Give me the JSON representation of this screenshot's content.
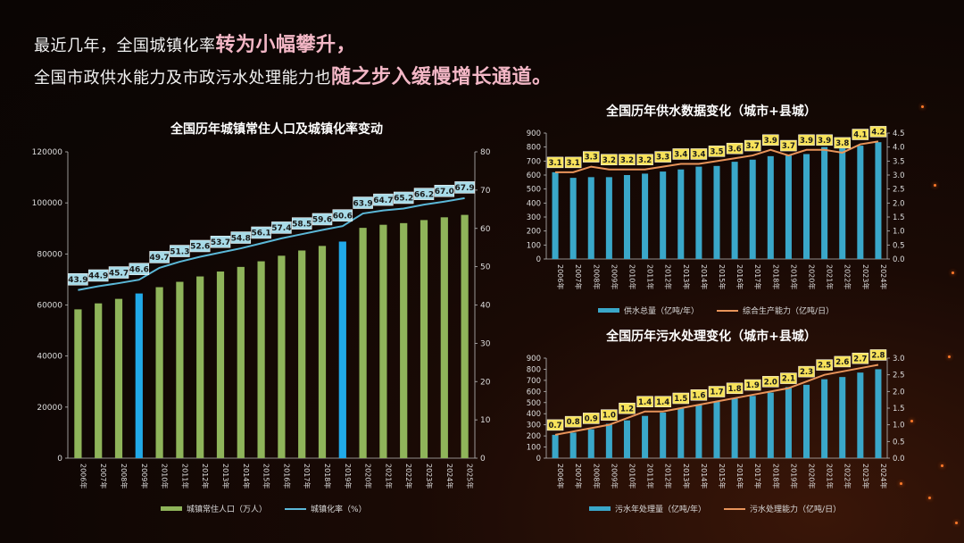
{
  "headline": {
    "line1_plain": "最近几年，全国城镇化率",
    "line1_em": "转为小幅攀升，",
    "line2_plain": "全国市政供水能力及市政污水处理能力也",
    "line2_em": "随之步入缓慢增长通道。"
  },
  "colors": {
    "population_bar": "#8fb45a",
    "highlight_bar": "#21a9e8",
    "urban_line": "#5bb8d8",
    "supply_bar": "#3aa7c9",
    "capacity_line": "#e8945a",
    "label_bg_blue": "#a8dbe8",
    "label_bg_yellow": "#f7e25a"
  },
  "chart_data": [
    {
      "id": "population",
      "type": "bar",
      "title": "全国历年城镇常住人口及城镇化率变动",
      "categories": [
        "2006年",
        "2007年",
        "2008年",
        "2009年",
        "2010年",
        "2011年",
        "2012年",
        "2013年",
        "2014年",
        "2015年",
        "2016年",
        "2017年",
        "2018年",
        "2019年",
        "2020年",
        "2021年",
        "2022年",
        "2023年",
        "2024年",
        "2025年"
      ],
      "series": [
        {
          "name": "城镇常住人口（万人）",
          "axis": "left",
          "type": "bar",
          "values": [
            58288,
            60633,
            62403,
            64512,
            66978,
            69079,
            71182,
            73111,
            74916,
            77116,
            79298,
            81347,
            83137,
            84843,
            90220,
            91425,
            92071,
            93267,
            94350,
            95300
          ],
          "highlight_indices": [
            3,
            13
          ]
        },
        {
          "name": "城镇化率（%）",
          "axis": "right",
          "type": "line",
          "values": [
            43.9,
            44.9,
            45.7,
            46.6,
            49.7,
            51.3,
            52.6,
            53.7,
            54.8,
            56.1,
            57.4,
            58.5,
            59.6,
            60.6,
            63.9,
            64.7,
            65.2,
            66.2,
            67.0,
            67.9
          ]
        }
      ],
      "data_labels": [
        "43.9",
        "44.9",
        "45.7",
        "46.6",
        "49.7",
        "51.3",
        "52.6",
        "53.7",
        "54.8",
        "56.1",
        "57.4",
        "58.5",
        "59.6",
        "60.6",
        "63.9",
        "64.7",
        "65.2",
        "66.2",
        "67.0",
        "67.9"
      ],
      "y_left": {
        "min": 0,
        "max": 120000,
        "ticks": [
          "0",
          "20000",
          "40000",
          "60000",
          "80000",
          "100000",
          "120000"
        ]
      },
      "y_right": {
        "min": 0,
        "max": 80,
        "ticks": [
          "0",
          "10",
          "20",
          "30",
          "40",
          "50",
          "60",
          "70",
          "80"
        ]
      }
    },
    {
      "id": "supply",
      "type": "bar",
      "title": "全国历年供水数据变化（城市+县城）",
      "categories": [
        "2006年",
        "2007年",
        "2008年",
        "2009年",
        "2010年",
        "2011年",
        "2012年",
        "2013年",
        "2014年",
        "2015年",
        "2016年",
        "2017年",
        "2018年",
        "2019年",
        "2020年",
        "2021年",
        "2022年",
        "2023年",
        "2024年"
      ],
      "series": [
        {
          "name": "供水总量（亿吨/年）",
          "axis": "left",
          "type": "bar",
          "values": [
            620,
            580,
            585,
            585,
            600,
            610,
            625,
            640,
            660,
            665,
            695,
            710,
            735,
            740,
            750,
            800,
            790,
            810,
            835
          ]
        },
        {
          "name": "综合生产能力（亿吨/日）",
          "axis": "right",
          "type": "line",
          "values": [
            3.1,
            3.1,
            3.3,
            3.2,
            3.2,
            3.2,
            3.3,
            3.4,
            3.4,
            3.5,
            3.6,
            3.7,
            3.9,
            3.7,
            3.9,
            3.9,
            3.8,
            4.1,
            4.2
          ]
        }
      ],
      "data_labels": [
        "3.1",
        "3.1",
        "3.3",
        "3.2",
        "3.2",
        "3.2",
        "3.3",
        "3.4",
        "3.4",
        "3.5",
        "3.6",
        "3.7",
        "3.9",
        "3.7",
        "3.9",
        "3.9",
        "3.8",
        "4.1",
        "4.2"
      ],
      "y_left": {
        "min": 0,
        "max": 900,
        "ticks": [
          "0",
          "100",
          "200",
          "300",
          "400",
          "500",
          "600",
          "700",
          "800",
          "900"
        ]
      },
      "y_right": {
        "min": 0,
        "max": 4.5,
        "ticks": [
          "0.0",
          "0.5",
          "1.0",
          "1.5",
          "2.0",
          "2.5",
          "3.0",
          "3.5",
          "4.0",
          "4.5"
        ]
      }
    },
    {
      "id": "sewage",
      "type": "bar",
      "title": "全国历年污水处理变化（城市+县城）",
      "categories": [
        "2006年",
        "2007年",
        "2008年",
        "2009年",
        "2010年",
        "2011年",
        "2012年",
        "2013年",
        "2014年",
        "2015年",
        "2016年",
        "2017年",
        "2018年",
        "2019年",
        "2020年",
        "2021年",
        "2022年",
        "2023年",
        "2024年"
      ],
      "series": [
        {
          "name": "污水年处理量（亿吨/年）",
          "axis": "left",
          "type": "bar",
          "values": [
            210,
            230,
            260,
            310,
            340,
            380,
            410,
            450,
            480,
            510,
            540,
            560,
            590,
            640,
            660,
            710,
            730,
            770,
            800
          ]
        },
        {
          "name": "污水处理能力（亿吨/日）",
          "axis": "right",
          "type": "line",
          "values": [
            0.7,
            0.8,
            0.9,
            1.0,
            1.2,
            1.4,
            1.4,
            1.5,
            1.6,
            1.7,
            1.8,
            1.9,
            2.0,
            2.1,
            2.3,
            2.5,
            2.6,
            2.7,
            2.8
          ]
        }
      ],
      "data_labels": [
        "0.7",
        "0.8",
        "0.9",
        "1.0",
        "1.2",
        "1.4",
        "1.4",
        "1.5",
        "1.6",
        "1.7",
        "1.8",
        "1.9",
        "2.0",
        "2.1",
        "2.3",
        "2.5",
        "2.6",
        "2.7",
        "2.8"
      ],
      "y_left": {
        "min": 0,
        "max": 900,
        "ticks": [
          "0",
          "100",
          "200",
          "300",
          "400",
          "500",
          "600",
          "700",
          "800",
          "900"
        ]
      },
      "y_right": {
        "min": 0,
        "max": 3.0,
        "ticks": [
          "0.0",
          "0.5",
          "1.0",
          "1.5",
          "2.0",
          "2.5",
          "3.0"
        ]
      }
    }
  ]
}
